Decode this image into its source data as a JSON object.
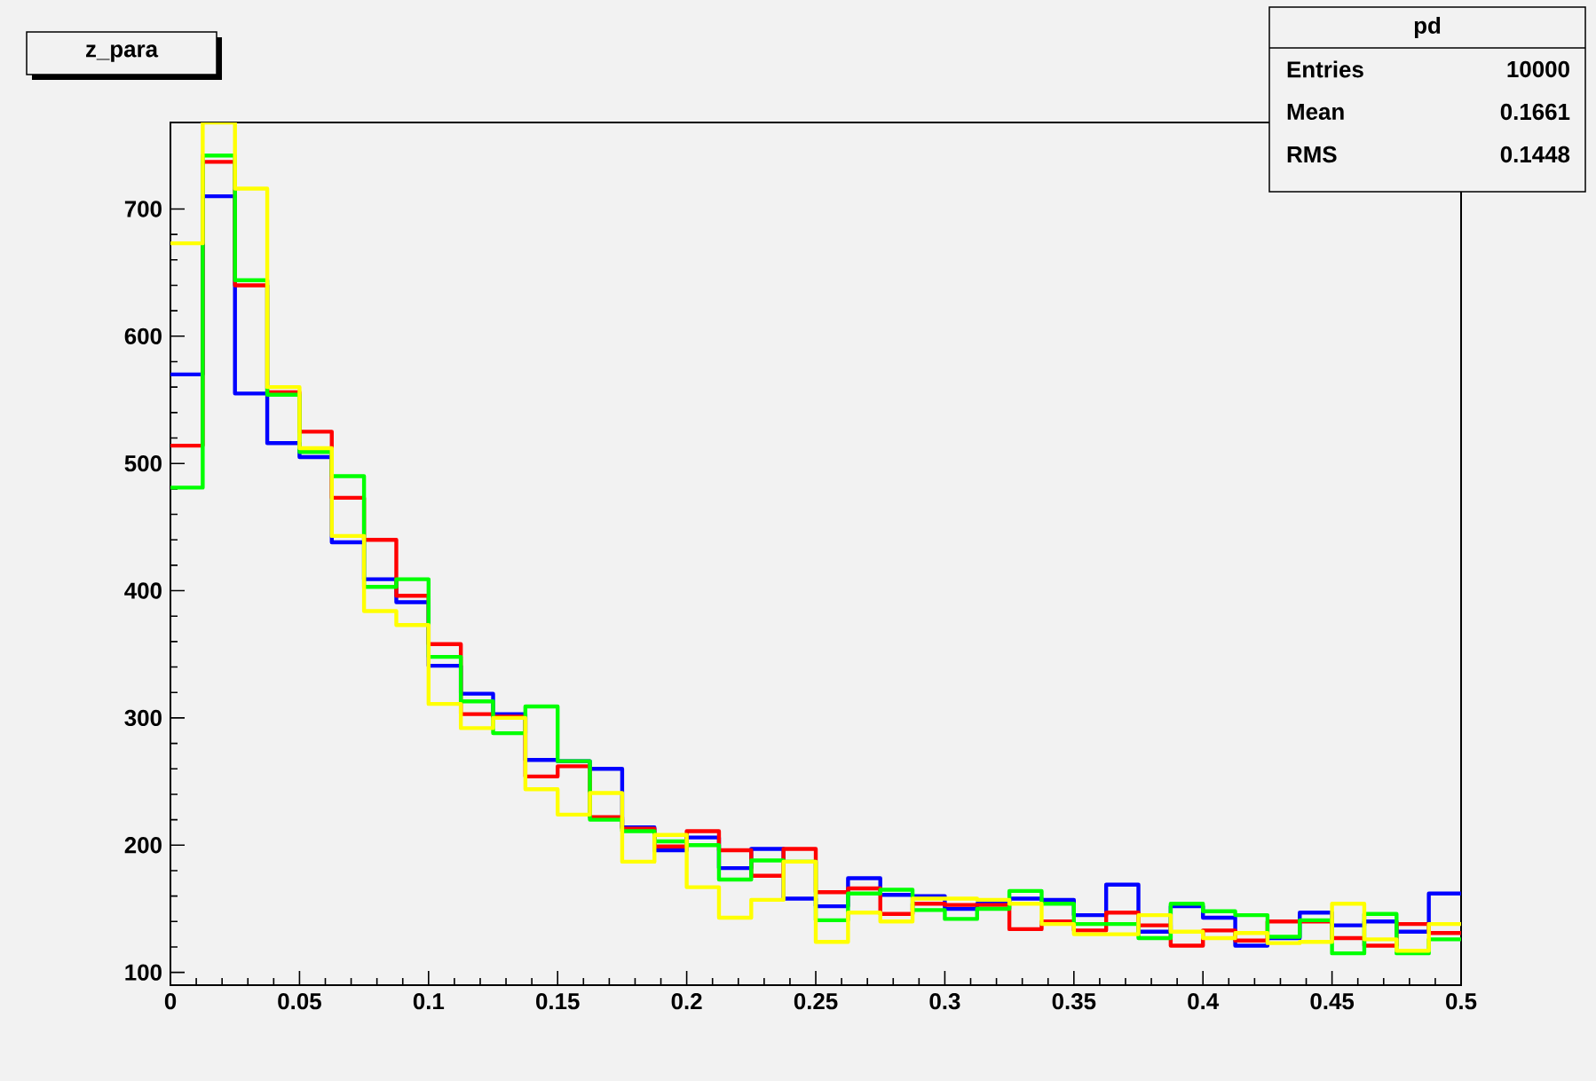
{
  "chart_data": {
    "type": "histogram",
    "title": "z_para",
    "bins": [
      0,
      0.0125,
      0.025,
      0.0375,
      0.05,
      0.0625,
      0.075,
      0.0875,
      0.1,
      0.1125,
      0.125,
      0.1375,
      0.15,
      0.1625,
      0.175,
      0.1875,
      0.2,
      0.2125,
      0.225,
      0.2375,
      0.25,
      0.2625,
      0.275,
      0.2875,
      0.3,
      0.3125,
      0.325,
      0.3375,
      0.35,
      0.3625,
      0.375,
      0.3875,
      0.4,
      0.4125,
      0.425,
      0.4375,
      0.45,
      0.4625,
      0.475,
      0.4875,
      0.5
    ],
    "series": [
      {
        "color": "#0000ff",
        "values": [
          570,
          710,
          555,
          516,
          505,
          438,
          409,
          391,
          341,
          319,
          303,
          267,
          266,
          260,
          214,
          196,
          206,
          182,
          197,
          158,
          152,
          174,
          161,
          160,
          150,
          154,
          158,
          157,
          145,
          169,
          132,
          152,
          143,
          121,
          127,
          147,
          137,
          140,
          132,
          162
        ]
      },
      {
        "color": "#ff0000",
        "values": [
          514,
          737,
          640,
          556,
          525,
          473,
          440,
          396,
          358,
          303,
          301,
          254,
          262,
          222,
          213,
          199,
          211,
          196,
          176,
          197,
          163,
          166,
          146,
          154,
          153,
          153,
          134,
          140,
          133,
          147,
          137,
          121,
          133,
          125,
          140,
          140,
          127,
          121,
          138,
          131
        ]
      },
      {
        "color": "#00ff00",
        "values": [
          481,
          742,
          644,
          554,
          509,
          490,
          403,
          409,
          348,
          313,
          288,
          309,
          266,
          220,
          211,
          203,
          200,
          173,
          188,
          187,
          141,
          162,
          165,
          149,
          142,
          150,
          164,
          154,
          138,
          138,
          127,
          154,
          148,
          145,
          128,
          141,
          115,
          146,
          115,
          126
        ]
      },
      {
        "color": "#ffff00",
        "values": [
          673,
          768,
          716,
          560,
          512,
          443,
          384,
          373,
          311,
          292,
          300,
          244,
          224,
          241,
          187,
          208,
          167,
          143,
          157,
          187,
          124,
          147,
          140,
          158,
          158,
          157,
          154,
          138,
          130,
          130,
          145,
          132,
          127,
          131,
          123,
          124,
          154,
          126,
          117,
          138
        ]
      }
    ],
    "xlim": [
      0,
      0.5
    ],
    "ylim": [
      90,
      768
    ],
    "xticks": [
      0,
      0.05,
      0.1,
      0.15,
      0.2,
      0.25,
      0.3,
      0.35,
      0.4,
      0.45,
      0.5
    ],
    "yticks": [
      100,
      200,
      300,
      400,
      500,
      600,
      700
    ],
    "annotations": [
      "pd",
      "Entries",
      "10000",
      "Mean",
      "0.1661",
      "RMS",
      "0.1448"
    ]
  }
}
